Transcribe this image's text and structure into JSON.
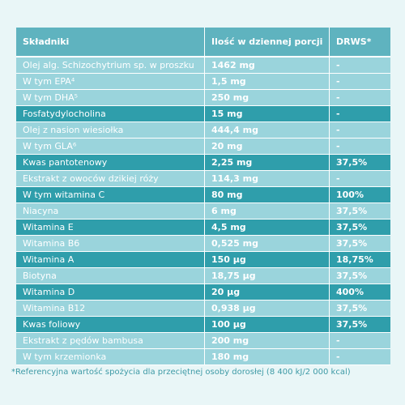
{
  "table": {
    "headers": [
      "Składniki",
      "Ilość w dziennej porcji",
      "DRWS*"
    ],
    "rows": [
      {
        "name": "Olej alg. Schizochytrium sp. w proszku",
        "amount": "1462 mg",
        "drws": "-",
        "dark": false
      },
      {
        "name": "W tym EPA⁴",
        "amount": "1,5 mg",
        "drws": "-",
        "dark": false
      },
      {
        "name": "W tym DHA⁵",
        "amount": "250 mg",
        "drws": "-",
        "dark": false
      },
      {
        "name": "Fosfatydylocholina",
        "amount": "15 mg",
        "drws": "-",
        "dark": true
      },
      {
        "name": "Olej z nasion wiesiołka",
        "amount": "444,4 mg",
        "drws": "-",
        "dark": false
      },
      {
        "name": "W tym GLA⁶",
        "amount": "20 mg",
        "drws": "-",
        "dark": false
      },
      {
        "name": "Kwas pantotenowy",
        "amount": "2,25 mg",
        "drws": "37,5%",
        "dark": true
      },
      {
        "name": "Ekstrakt z owoców dzikiej róży",
        "amount": "114,3 mg",
        "drws": "-",
        "dark": false
      },
      {
        "name": "W tym witamina C",
        "amount": "80 mg",
        "drws": "100%",
        "dark": true
      },
      {
        "name": "Niacyna",
        "amount": "6 mg",
        "drws": "37,5%",
        "dark": false
      },
      {
        "name": "Witamina E",
        "amount": "4,5 mg",
        "drws": "37,5%",
        "dark": true
      },
      {
        "name": "Witamina B6",
        "amount": "0,525 mg",
        "drws": "37,5%",
        "dark": false
      },
      {
        "name": "Witamina A",
        "amount": "150 µg",
        "drws": "18,75%",
        "dark": true
      },
      {
        "name": "Biotyna",
        "amount": "18,75 µg",
        "drws": "37,5%",
        "dark": false
      },
      {
        "name": "Witamina D",
        "amount": "20 µg",
        "drws": "400%",
        "dark": true
      },
      {
        "name": "Witamina B12",
        "amount": "0,938 µg",
        "drws": "37,5%",
        "dark": false
      },
      {
        "name": "Kwas foliowy",
        "amount": "100 µg",
        "drws": "37,5%",
        "dark": true
      },
      {
        "name": "Ekstrakt z pędów bambusa",
        "amount": "200 mg",
        "drws": "-",
        "dark": false
      },
      {
        "name": "W tym krzemionka",
        "amount": "180 mg",
        "drws": "-",
        "dark": false
      }
    ]
  },
  "footnote": "*Referencyjna wartość spożycia dla przeciętnej osoby dorosłej (8 400 kJ/2 000 kcal)",
  "colors": {
    "header": "#5fb3bf",
    "light_row": "#9ad4dc",
    "dark_row": "#2f9eab",
    "background": "#e9f6f7"
  }
}
